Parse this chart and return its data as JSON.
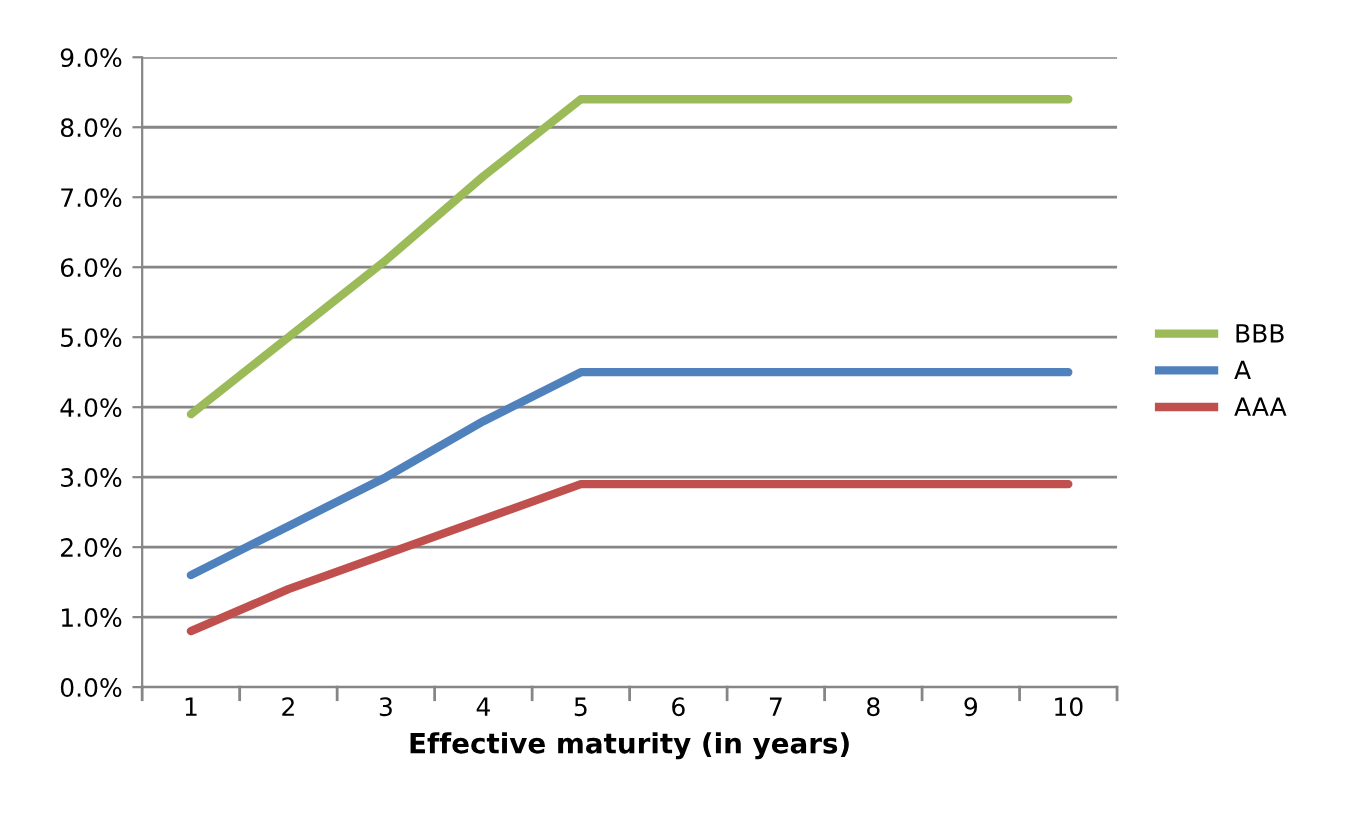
{
  "chart_data": {
    "type": "line",
    "xlabel": "Effective maturity (in years)",
    "categories": [
      "1",
      "2",
      "3",
      "4",
      "5",
      "6",
      "7",
      "8",
      "9",
      "10"
    ],
    "series": [
      {
        "name": "BBB",
        "color": "#9bbb59",
        "values": [
          3.9,
          5.0,
          6.1,
          7.3,
          8.4,
          8.4,
          8.4,
          8.4,
          8.4,
          8.4
        ]
      },
      {
        "name": "A",
        "color": "#4f81bd",
        "values": [
          1.6,
          2.3,
          3.0,
          3.8,
          4.5,
          4.5,
          4.5,
          4.5,
          4.5,
          4.5
        ]
      },
      {
        "name": "AAA",
        "color": "#c0504d",
        "values": [
          0.8,
          1.4,
          1.9,
          2.4,
          2.9,
          2.9,
          2.9,
          2.9,
          2.9,
          2.9
        ]
      }
    ],
    "ylim": [
      0,
      9
    ],
    "yticks": [
      {
        "value": 0,
        "label": "0.0%"
      },
      {
        "value": 1,
        "label": "1.0%"
      },
      {
        "value": 2,
        "label": "2.0%"
      },
      {
        "value": 3,
        "label": "3.0%"
      },
      {
        "value": 4,
        "label": "4.0%"
      },
      {
        "value": 5,
        "label": "5.0%"
      },
      {
        "value": 6,
        "label": "6.0%"
      },
      {
        "value": 7,
        "label": "7.0%"
      },
      {
        "value": 8,
        "label": "8.0%"
      },
      {
        "value": 9,
        "label": "9.0%"
      }
    ],
    "grid": "y",
    "legend": "right",
    "marker": "none",
    "line_style": "solid"
  }
}
